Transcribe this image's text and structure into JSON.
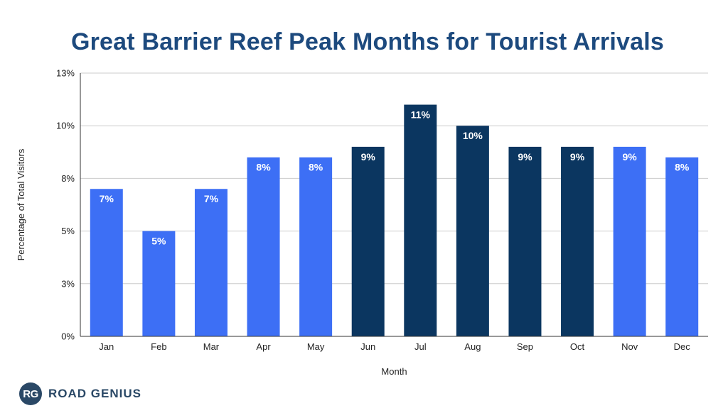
{
  "chart_data": {
    "type": "bar",
    "title": "Great Barrier Reef Peak Months for Tourist Arrivals",
    "xlabel": "Month",
    "ylabel": "Percentage of Total Visitors",
    "categories": [
      "Jan",
      "Feb",
      "Mar",
      "Apr",
      "May",
      "Jun",
      "Jul",
      "Aug",
      "Sep",
      "Oct",
      "Nov",
      "Dec"
    ],
    "values": [
      7,
      5,
      7,
      8.5,
      8.5,
      9,
      11,
      10,
      9,
      9,
      9,
      8.5
    ],
    "bar_labels": [
      "7%",
      "5%",
      "7%",
      "8%",
      "8%",
      "9%",
      "11%",
      "10%",
      "9%",
      "9%",
      "9%",
      "8%"
    ],
    "peak_months": [
      false,
      false,
      false,
      false,
      false,
      true,
      true,
      true,
      true,
      true,
      false,
      false
    ],
    "yticks": [
      0,
      2.5,
      5,
      7.5,
      10,
      12.5
    ],
    "ytick_labels": [
      "0%",
      "3%",
      "5%",
      "8%",
      "10%",
      "13%"
    ],
    "ylim": [
      0,
      12.5
    ],
    "grid": true,
    "colors": {
      "bar": "#3d6ff5",
      "peak_bar": "#0b3660",
      "title": "#1d4a7e",
      "grid": "#cccccc"
    }
  },
  "brand": {
    "badge": "RG",
    "name": "ROAD GENIUS"
  }
}
